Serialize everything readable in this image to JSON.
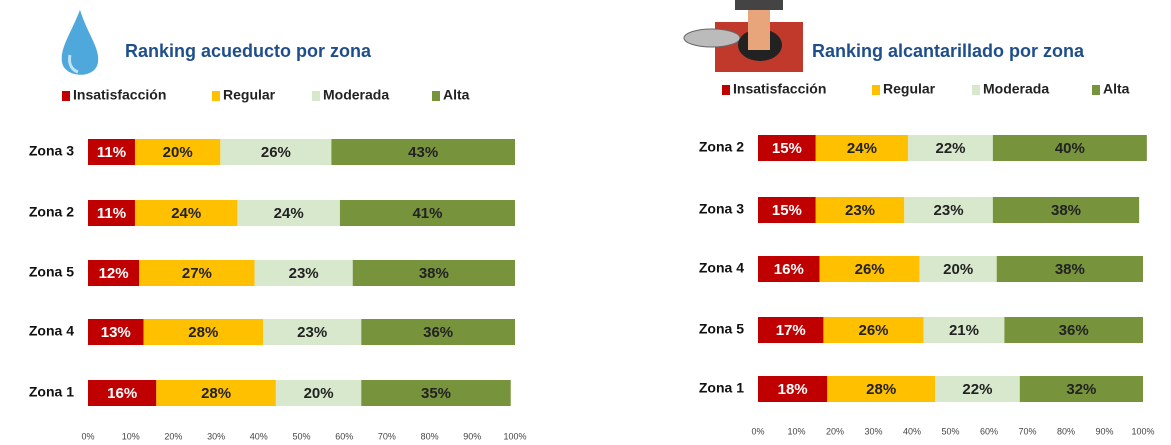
{
  "chart_data": [
    {
      "type": "stacked-barh",
      "title": "Ranking acueducto por zona",
      "categories": [
        "Zona 3",
        "Zona 2",
        "Zona 5",
        "Zona 4",
        "Zona 1"
      ],
      "series": [
        {
          "name": "Insatisfacción",
          "color": "#c00000",
          "values": [
            11,
            11,
            12,
            13,
            16
          ],
          "value_labels": [
            "11%",
            "11%",
            "12%",
            "13%",
            "16%"
          ]
        },
        {
          "name": "Regular",
          "color": "#ffc000",
          "values": [
            20,
            24,
            27,
            28,
            28
          ],
          "value_labels": [
            "20%",
            "24%",
            "27%",
            "28%",
            "28%"
          ]
        },
        {
          "name": "Moderada",
          "color": "#d8e8cc",
          "values": [
            26,
            24,
            23,
            23,
            20
          ],
          "value_labels": [
            "26%",
            "24%",
            "23%",
            "23%",
            "20%"
          ]
        },
        {
          "name": "Alta",
          "color": "#77933c",
          "values": [
            43,
            41,
            38,
            36,
            35
          ],
          "value_labels": [
            "43%",
            "41%",
            "38%",
            "36%",
            "35%"
          ]
        }
      ],
      "xlim": [
        0,
        100
      ],
      "xticks": [
        {
          "value": 0,
          "label": "0%"
        },
        {
          "value": 10,
          "label": "10%"
        },
        {
          "value": 20,
          "label": "20%"
        },
        {
          "value": 30,
          "label": "30%"
        },
        {
          "value": 40,
          "label": "40%"
        },
        {
          "value": 50,
          "label": "50%"
        },
        {
          "value": 60,
          "label": "60%"
        },
        {
          "value": 70,
          "label": "70%"
        },
        {
          "value": 80,
          "label": "80%"
        },
        {
          "value": 90,
          "label": "90%"
        },
        {
          "value": 100,
          "label": "100%"
        }
      ]
    },
    {
      "type": "stacked-barh",
      "title": "Ranking alcantarillado por zona",
      "categories": [
        "Zona 2",
        "Zona 3",
        "Zona 4",
        "Zona 5",
        "Zona 1"
      ],
      "series": [
        {
          "name": "Insatisfacción",
          "color": "#c00000",
          "values": [
            15,
            15,
            16,
            17,
            18
          ],
          "value_labels": [
            "15%",
            "15%",
            "16%",
            "17%",
            "18%"
          ]
        },
        {
          "name": "Regular",
          "color": "#ffc000",
          "values": [
            24,
            23,
            26,
            26,
            28
          ],
          "value_labels": [
            "24%",
            "23%",
            "26%",
            "26%",
            "28%"
          ]
        },
        {
          "name": "Moderada",
          "color": "#d8e8cc",
          "values": [
            22,
            23,
            20,
            21,
            22
          ],
          "value_labels": [
            "22%",
            "23%",
            "20%",
            "21%",
            "22%"
          ]
        },
        {
          "name": "Alta",
          "color": "#77933c",
          "values": [
            40,
            38,
            38,
            36,
            32
          ],
          "value_labels": [
            "40%",
            "38%",
            "38%",
            "36%",
            "32%"
          ]
        }
      ],
      "xlim": [
        0,
        100
      ],
      "xticks": [
        {
          "value": 0,
          "label": "0%"
        },
        {
          "value": 10,
          "label": "10%"
        },
        {
          "value": 20,
          "label": "20%"
        },
        {
          "value": 30,
          "label": "30%"
        },
        {
          "value": 40,
          "label": "40%"
        },
        {
          "value": 50,
          "label": "50%"
        },
        {
          "value": 60,
          "label": "60%"
        },
        {
          "value": 70,
          "label": "70%"
        },
        {
          "value": 80,
          "label": "80%"
        },
        {
          "value": 90,
          "label": "90%"
        },
        {
          "value": 100,
          "label": "100%"
        }
      ]
    }
  ]
}
